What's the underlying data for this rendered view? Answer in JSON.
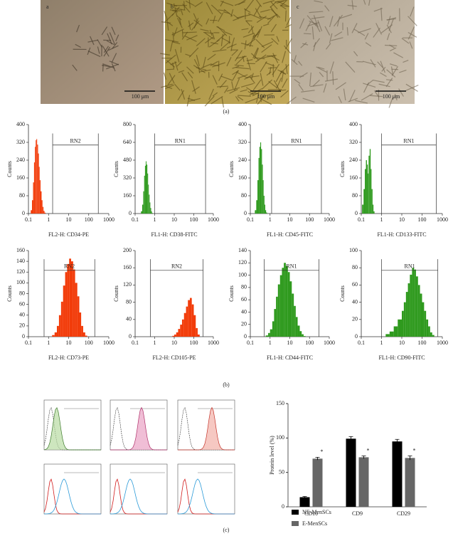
{
  "panel_labels": [
    "(a)",
    "(b)",
    "(c)"
  ],
  "micrographs": [
    {
      "letter": "a",
      "scale_bar": "100 μm"
    },
    {
      "letter": "b",
      "scale_bar": "100 μm"
    },
    {
      "letter": "c",
      "scale_bar": "100 μm"
    }
  ],
  "chart_data": [
    {
      "type": "histogram",
      "x_label": "FL2-H: CD34-PE",
      "y_label": "Counts",
      "color": "#f23c0a",
      "log_x": true,
      "xlim": [
        0.1,
        1000
      ],
      "xticks": [
        0.1,
        1,
        10,
        100,
        1000
      ],
      "ylim": [
        0,
        400
      ],
      "yticks": [
        0,
        80,
        160,
        240,
        320,
        400
      ],
      "gate": {
        "label": "RN2",
        "range": [
          1.6,
          300
        ]
      },
      "bins": [
        0.13,
        0.15,
        0.17,
        0.19,
        0.21,
        0.23,
        0.25,
        0.27,
        0.3,
        0.33,
        0.36,
        0.4,
        0.45,
        0.5,
        0.56,
        0.63,
        0.71
      ],
      "counts": [
        15,
        60,
        140,
        230,
        300,
        330,
        335,
        310,
        270,
        210,
        150,
        100,
        60,
        30,
        12,
        4
      ]
    },
    {
      "type": "histogram",
      "x_label": "FL1-H: CD38-FITC",
      "y_label": "Counts",
      "color": "#2f9a1e",
      "log_x": true,
      "xlim": [
        0.1,
        1000
      ],
      "xticks": [
        0.1,
        1,
        10,
        100,
        1000
      ],
      "ylim": [
        0,
        800
      ],
      "yticks": [
        0,
        160,
        320,
        480,
        640,
        800
      ],
      "gate": {
        "label": "RN1",
        "range": [
          1,
          400
        ]
      },
      "bins": [
        0.2,
        0.23,
        0.26,
        0.29,
        0.32,
        0.35,
        0.38,
        0.42,
        0.46,
        0.5,
        0.55,
        0.6,
        0.66,
        0.72,
        0.8
      ],
      "counts": [
        20,
        80,
        200,
        340,
        430,
        470,
        440,
        360,
        260,
        170,
        100,
        50,
        20,
        5
      ]
    },
    {
      "type": "histogram",
      "x_label": "FL1-H: CD45-FITC",
      "y_label": "Counts",
      "color": "#2f9a1e",
      "log_x": true,
      "xlim": [
        0.1,
        1000
      ],
      "xticks": [
        0.1,
        1,
        10,
        100,
        1000
      ],
      "ylim": [
        0,
        400
      ],
      "yticks": [
        0,
        80,
        160,
        240,
        320,
        400
      ],
      "gate": {
        "label": "RN1",
        "range": [
          1.2,
          400
        ]
      },
      "bins": [
        0.17,
        0.2,
        0.23,
        0.26,
        0.29,
        0.32,
        0.35,
        0.39,
        0.43,
        0.47,
        0.52,
        0.57,
        0.63,
        0.7
      ],
      "counts": [
        15,
        60,
        150,
        250,
        300,
        320,
        290,
        220,
        150,
        80,
        40,
        15,
        5
      ]
    },
    {
      "type": "histogram",
      "x_label": "FL1-H: CD133-FITC",
      "y_label": "Counts",
      "color": "#2f9a1e",
      "log_x": true,
      "xlim": [
        0.1,
        1000
      ],
      "xticks": [
        0.1,
        1,
        10,
        100,
        1000
      ],
      "ylim": [
        0,
        400
      ],
      "yticks": [
        0,
        80,
        160,
        240,
        320,
        400
      ],
      "gate": {
        "label": "RN1",
        "range": [
          1,
          500
        ]
      },
      "bins": [
        0.11,
        0.13,
        0.15,
        0.17,
        0.19,
        0.21,
        0.23,
        0.26,
        0.29,
        0.32,
        0.36,
        0.4,
        0.45
      ],
      "counts": [
        40,
        110,
        200,
        240,
        220,
        180,
        260,
        290,
        200,
        110,
        40,
        10
      ]
    },
    {
      "type": "histogram",
      "x_label": "FL2-H: CD73-PE",
      "y_label": "Counts",
      "color": "#f23c0a",
      "log_x": true,
      "xlim": [
        0.1,
        1000
      ],
      "xticks": [
        0.1,
        1,
        10,
        100,
        1000
      ],
      "ylim": [
        0,
        160
      ],
      "yticks": [
        0,
        20,
        40,
        60,
        80,
        100,
        120,
        140,
        160
      ],
      "gate": {
        "label": "RN2",
        "range": [
          0.6,
          200
        ]
      },
      "bins": [
        1.5,
        2,
        2.6,
        3.3,
        4.2,
        5.3,
        6.7,
        8.4,
        10.6,
        13.3,
        16.8,
        21,
        27,
        34,
        42,
        53,
        67,
        84
      ],
      "counts": [
        3,
        8,
        20,
        40,
        65,
        95,
        120,
        135,
        145,
        140,
        125,
        100,
        75,
        45,
        20,
        8,
        2
      ]
    },
    {
      "type": "histogram",
      "x_label": "FL2-H: CD105-PE",
      "y_label": "Counts",
      "color": "#f23c0a",
      "log_x": true,
      "xlim": [
        0.1,
        1000
      ],
      "xticks": [
        0.1,
        1,
        10,
        100,
        1000
      ],
      "ylim": [
        0,
        200
      ],
      "yticks": [
        0,
        40,
        80,
        120,
        160,
        200
      ],
      "gate": {
        "label": "RN2",
        "range": [
          0.6,
          300
        ]
      },
      "bins": [
        8,
        10,
        12.6,
        15.8,
        20,
        25,
        31.6,
        40,
        50,
        63,
        79,
        100,
        126,
        158,
        200
      ],
      "counts": [
        2,
        5,
        10,
        18,
        28,
        40,
        55,
        70,
        85,
        90,
        75,
        50,
        20,
        5
      ]
    },
    {
      "type": "histogram",
      "x_label": "FL1-H: CD44-FITC",
      "y_label": "Counts",
      "color": "#2f9a1e",
      "log_x": true,
      "xlim": [
        0.1,
        1000
      ],
      "xticks": [
        0.1,
        1,
        10,
        100,
        1000
      ],
      "ylim": [
        0,
        140
      ],
      "yticks": [
        0,
        20,
        40,
        60,
        80,
        100,
        120,
        140
      ],
      "gate": {
        "label": "RN1",
        "range": [
          0.5,
          300
        ]
      },
      "bins": [
        0.6,
        0.8,
        1,
        1.3,
        1.6,
        2,
        2.5,
        3.2,
        4,
        5,
        6.3,
        8,
        10,
        12.6,
        16,
        20,
        25,
        32,
        40,
        50,
        63
      ],
      "counts": [
        2,
        6,
        12,
        25,
        45,
        65,
        85,
        100,
        112,
        120,
        115,
        105,
        90,
        70,
        50,
        32,
        18,
        9,
        4,
        1
      ]
    },
    {
      "type": "histogram",
      "x_label": "FL1-H: CD90-FITC",
      "y_label": "Counts",
      "color": "#2f9a1e",
      "log_x": true,
      "xlim": [
        0.1,
        1000
      ],
      "xticks": [
        0.1,
        1,
        10,
        100,
        1000
      ],
      "ylim": [
        0,
        100
      ],
      "yticks": [
        0,
        20,
        40,
        60,
        80,
        100
      ],
      "gate": {
        "label": "RN1",
        "range": [
          1,
          600
        ]
      },
      "bins": [
        1.6,
        2.5,
        4,
        6.3,
        10,
        12.6,
        16,
        20,
        25,
        32,
        40,
        50,
        63,
        79,
        100,
        126,
        158,
        200,
        250,
        316,
        400
      ],
      "counts": [
        3,
        6,
        12,
        20,
        30,
        40,
        52,
        62,
        72,
        80,
        78,
        70,
        60,
        50,
        40,
        30,
        20,
        12,
        5,
        2
      ]
    },
    {
      "type": "bar",
      "y_label": "Protein level (%)",
      "categories": [
        "CD10",
        "CD9",
        "CD29"
      ],
      "ylim": [
        0,
        150
      ],
      "yticks": [
        0,
        50,
        100,
        150
      ],
      "series": [
        {
          "name": "NE-MenSCs",
          "color": "#000000",
          "values": [
            14,
            99,
            95
          ],
          "errors": [
            1,
            3,
            3
          ]
        },
        {
          "name": "E-MenSCs",
          "color": "#666666",
          "values": [
            70,
            72,
            71
          ],
          "errors": [
            2,
            2,
            3
          ],
          "significance": [
            "*",
            "*",
            "*"
          ]
        }
      ]
    }
  ]
}
